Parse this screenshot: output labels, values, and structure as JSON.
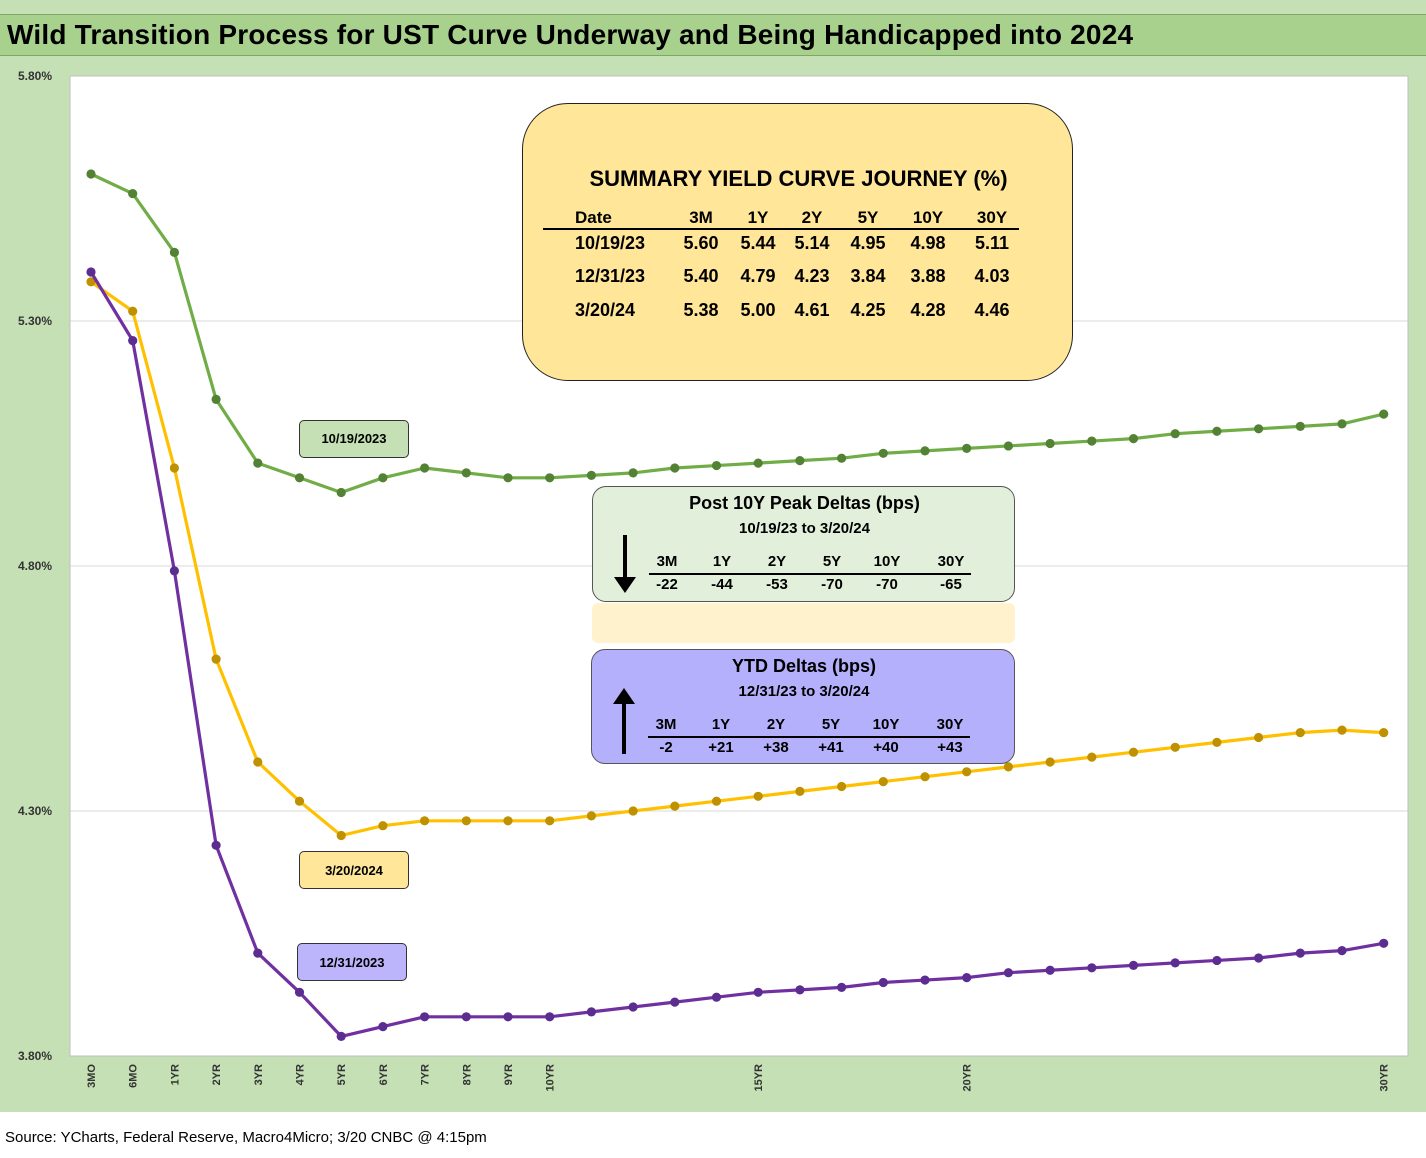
{
  "title": "Wild Transition Process for UST Curve Underway and Being Handicapped into 2024",
  "source": "Source: YCharts, Federal Reserve, Macro4Micro; 3/20 CNBC @ 4:15pm",
  "chart_data": {
    "type": "line",
    "title": "Wild Transition Process for UST Curve Underway and Being Handicapped into 2024",
    "x": [
      0.25,
      0.5,
      1,
      2,
      3,
      4,
      5,
      6,
      7,
      8,
      9,
      10,
      11,
      12,
      13,
      14,
      15,
      16,
      17,
      18,
      19,
      20,
      21,
      22,
      23,
      24,
      25,
      26,
      27,
      28,
      29,
      30
    ],
    "x_tick_labels": [
      "3MO",
      "6MO",
      "1YR",
      "2YR",
      "3YR",
      "4YR",
      "5YR",
      "6YR",
      "7YR",
      "8YR",
      "9YR",
      "10YR",
      "",
      "",
      "",
      "",
      "15YR",
      "",
      "",
      "",
      "",
      "20YR",
      "",
      "",
      "",
      "",
      "",
      "",
      "",
      "",
      "",
      "30YR"
    ],
    "ylim": [
      3.8,
      5.8
    ],
    "y_ticks": [
      "3.80%",
      "4.30%",
      "4.80%",
      "5.30%",
      "5.80%"
    ],
    "grid": true,
    "series": [
      {
        "name": "10/19/2023",
        "color": "#70ad47",
        "marker": "#548235",
        "values": [
          5.6,
          5.56,
          5.44,
          5.14,
          5.01,
          4.98,
          4.95,
          4.98,
          5.0,
          4.99,
          4.98,
          4.98,
          4.985,
          4.99,
          5.0,
          5.005,
          5.01,
          5.015,
          5.02,
          5.03,
          5.035,
          5.04,
          5.045,
          5.05,
          5.055,
          5.06,
          5.07,
          5.075,
          5.08,
          5.085,
          5.09,
          5.11
        ]
      },
      {
        "name": "3/20/2024",
        "color": "#ffc000",
        "marker": "#bf9000",
        "values": [
          5.38,
          5.32,
          5.0,
          4.61,
          4.4,
          4.32,
          4.25,
          4.27,
          4.28,
          4.28,
          4.28,
          4.28,
          4.29,
          4.3,
          4.31,
          4.32,
          4.33,
          4.34,
          4.35,
          4.36,
          4.37,
          4.38,
          4.39,
          4.4,
          4.41,
          4.42,
          4.43,
          4.44,
          4.45,
          4.46,
          4.465,
          4.46
        ]
      },
      {
        "name": "12/31/2023",
        "color": "#7030a0",
        "marker": "#5c2d91",
        "values": [
          5.4,
          5.26,
          4.79,
          4.23,
          4.01,
          3.93,
          3.84,
          3.86,
          3.88,
          3.88,
          3.88,
          3.88,
          3.89,
          3.9,
          3.91,
          3.92,
          3.93,
          3.935,
          3.94,
          3.95,
          3.955,
          3.96,
          3.97,
          3.975,
          3.98,
          3.985,
          3.99,
          3.995,
          4.0,
          4.01,
          4.015,
          4.03
        ]
      }
    ]
  },
  "series_labels": {
    "green": "10/19/2023",
    "yellow": "3/20/2024",
    "purple": "12/31/2023"
  },
  "summary": {
    "title": "SUMMARY YIELD CURVE JOURNEY (%)",
    "headers": [
      "Date",
      "3M",
      "1Y",
      "2Y",
      "5Y",
      "10Y",
      "30Y"
    ],
    "rows": [
      [
        "10/19/23",
        "5.60",
        "5.44",
        "5.14",
        "4.95",
        "4.98",
        "5.11"
      ],
      [
        "12/31/23",
        "5.40",
        "4.79",
        "4.23",
        "3.84",
        "3.88",
        "4.03"
      ],
      [
        "3/20/24",
        "5.38",
        "5.00",
        "4.61",
        "4.25",
        "4.28",
        "4.46"
      ]
    ]
  },
  "peak_deltas": {
    "title": "Post 10Y Peak Deltas (bps)",
    "subtitle": "10/19/23 to 3/20/24",
    "headers": [
      "3M",
      "1Y",
      "2Y",
      "5Y",
      "10Y",
      "30Y"
    ],
    "values": [
      "-22",
      "-44",
      "-53",
      "-70",
      "-70",
      "-65"
    ]
  },
  "ytd_deltas": {
    "title": "YTD Deltas (bps)",
    "subtitle": "12/31/23 to 3/20/24",
    "headers": [
      "3M",
      "1Y",
      "2Y",
      "5Y",
      "10Y",
      "30Y"
    ],
    "values": [
      "-2",
      "+21",
      "+38",
      "+41",
      "+40",
      "+43"
    ]
  }
}
